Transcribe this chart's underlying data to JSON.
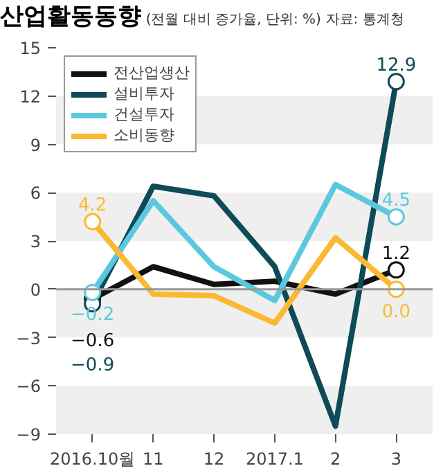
{
  "chart_data": {
    "type": "line",
    "title": "산업활동동향",
    "subtitle": "(전월 대비 증가율, 단위: %)",
    "annotations": [
      "자료: 통계청"
    ],
    "categories": [
      "2016.10월",
      "11",
      "12",
      "2017.1",
      "2",
      "3"
    ],
    "series": [
      {
        "name": "전산업생산",
        "color": "#111111",
        "values": [
          -0.6,
          1.4,
          0.3,
          0.5,
          -0.3,
          1.2
        ],
        "value_labels": [
          "−0.6",
          null,
          null,
          null,
          null,
          "1.2"
        ]
      },
      {
        "name": "설비투자",
        "color": "#0f4a57",
        "values": [
          -0.9,
          6.4,
          5.8,
          1.4,
          -8.5,
          12.9
        ],
        "value_labels": [
          "−0.9",
          null,
          null,
          null,
          null,
          "12.9"
        ]
      },
      {
        "name": "건설투자",
        "color": "#5bc8df",
        "values": [
          -0.2,
          5.5,
          1.4,
          -0.7,
          6.5,
          4.5
        ],
        "value_labels": [
          "−0.2",
          null,
          null,
          null,
          null,
          "4.5"
        ]
      },
      {
        "name": "소비동향",
        "color": "#fbb931",
        "values": [
          4.2,
          -0.3,
          -0.4,
          -2.1,
          3.2,
          0.0
        ],
        "value_labels": [
          "4.2",
          null,
          null,
          null,
          null,
          "0.0"
        ]
      }
    ],
    "ylim": [
      -9,
      15
    ],
    "yticks": [
      -9,
      -6,
      -3,
      0,
      3,
      6,
      9,
      12,
      15
    ],
    "bands": [
      {
        "axis": "y",
        "from": 9,
        "to": 12,
        "color": "#efefef"
      },
      {
        "axis": "y",
        "from": 3,
        "to": 6,
        "color": "#efefef"
      },
      {
        "axis": "y",
        "from": -3,
        "to": 0,
        "color": "#efefef"
      },
      {
        "axis": "y",
        "from": -9,
        "to": -6,
        "color": "#efefef"
      }
    ],
    "ref_lines": [
      {
        "axis": "y",
        "value": 0,
        "color": "#999999"
      }
    ],
    "grid": false,
    "legend": "top left",
    "line_style": "solid"
  }
}
